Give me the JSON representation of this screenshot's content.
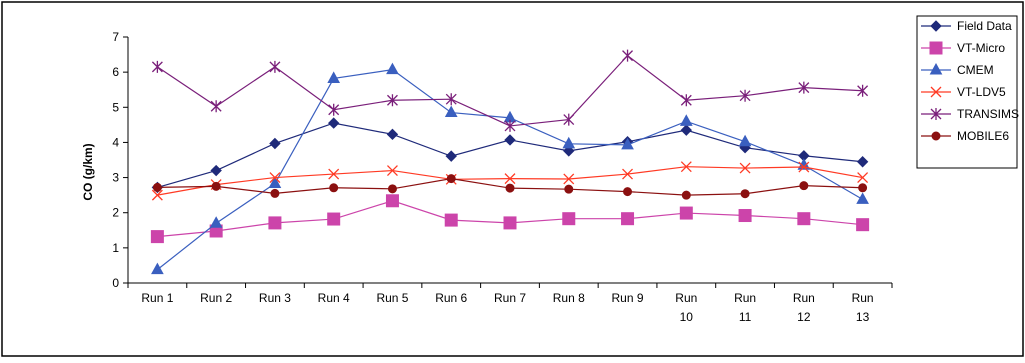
{
  "chart_data": {
    "type": "line",
    "title": "",
    "xlabel": "",
    "ylabel": "CO (g/km)",
    "ylim": [
      0,
      7
    ],
    "yticks": [
      0,
      1,
      2,
      3,
      4,
      5,
      6,
      7
    ],
    "grid": false,
    "legend_position": "top-right",
    "categories": [
      [
        "Run 1"
      ],
      [
        "Run 2"
      ],
      [
        "Run 3"
      ],
      [
        "Run 4"
      ],
      [
        "Run 5"
      ],
      [
        "Run 6"
      ],
      [
        "Run 7"
      ],
      [
        "Run 8"
      ],
      [
        "Run 9"
      ],
      [
        "Run",
        "10"
      ],
      [
        "Run",
        "11"
      ],
      [
        "Run",
        "12"
      ],
      [
        "Run",
        "13"
      ]
    ],
    "series": [
      {
        "name": "Field Data",
        "color": "#1f2a7a",
        "marker": "diamond",
        "values": [
          2.72,
          3.2,
          3.97,
          4.55,
          4.23,
          3.61,
          4.07,
          3.76,
          4.02,
          4.35,
          3.85,
          3.62,
          3.45
        ]
      },
      {
        "name": "VT-Micro",
        "color": "#cc44aa",
        "marker": "square",
        "values": [
          1.32,
          1.48,
          1.71,
          1.82,
          2.34,
          1.79,
          1.71,
          1.83,
          1.83,
          1.99,
          1.92,
          1.83,
          1.66
        ]
      },
      {
        "name": "CMEM",
        "color": "#3a5fbf",
        "marker": "triangle",
        "values": [
          0.38,
          1.7,
          2.83,
          5.82,
          6.07,
          4.85,
          4.7,
          3.96,
          3.93,
          4.6,
          4.02,
          3.35,
          2.38
        ]
      },
      {
        "name": "VT-LDV5",
        "color": "#ff3a24",
        "marker": "x",
        "values": [
          2.5,
          2.8,
          3.0,
          3.1,
          3.2,
          2.95,
          2.97,
          2.96,
          3.1,
          3.31,
          3.27,
          3.3,
          3.0
        ]
      },
      {
        "name": "TRANSIMS",
        "color": "#7a1f7a",
        "marker": "star",
        "values": [
          6.15,
          5.03,
          6.15,
          4.93,
          5.2,
          5.23,
          4.47,
          4.65,
          6.47,
          5.2,
          5.33,
          5.56,
          5.47
        ]
      },
      {
        "name": "MOBILE6",
        "color": "#8b1010",
        "marker": "circle",
        "values": [
          2.72,
          2.75,
          2.55,
          2.71,
          2.68,
          2.97,
          2.7,
          2.67,
          2.6,
          2.5,
          2.54,
          2.77,
          2.71
        ]
      }
    ]
  }
}
